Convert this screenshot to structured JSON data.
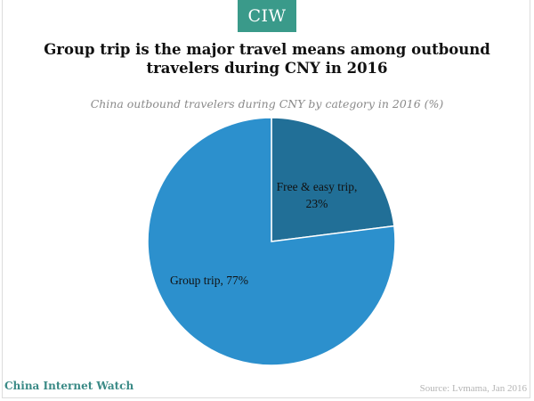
{
  "header": {
    "logo_text": "CIW",
    "logo_color": "#3a9a8a"
  },
  "chart_data": {
    "type": "pie",
    "title": "Group trip is the major travel means among outbound travelers during CNY in 2016",
    "subtitle": "China outbound travelers during CNY by category in 2016 (%)",
    "slices": [
      {
        "name": "Free & easy trip",
        "label_lines": [
          "Free & easy trip,",
          "23%"
        ],
        "value": 23,
        "color": "#216f97"
      },
      {
        "name": "Group trip",
        "label_lines": [
          "Group trip, 77%"
        ],
        "value": 77,
        "color": "#2c90cd"
      }
    ]
  },
  "footer": {
    "brand": "China Internet Watch",
    "source": "Source: Lvmama, Jan 2016"
  }
}
